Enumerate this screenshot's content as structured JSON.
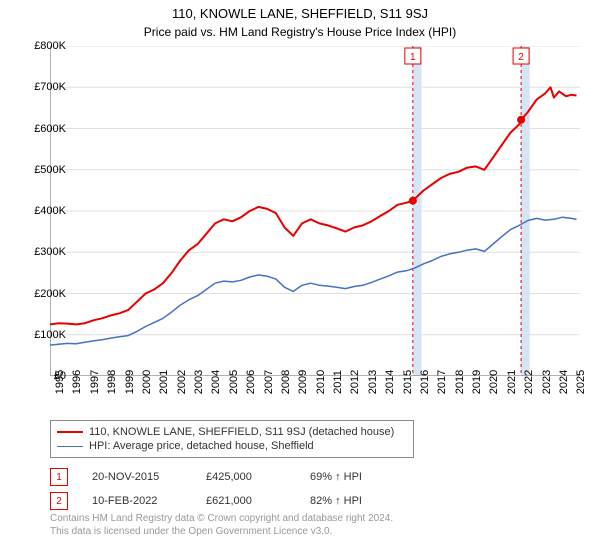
{
  "title": "110, KNOWLE LANE, SHEFFIELD, S11 9SJ",
  "subtitle": "Price paid vs. HM Land Registry's House Price Index (HPI)",
  "chart": {
    "type": "line",
    "background_color": "#ffffff",
    "grid_color": "#e0e0e0",
    "x_start_year": 1995,
    "x_end_year": 2025.5,
    "x_ticks": [
      1995,
      1996,
      1997,
      1998,
      1999,
      2000,
      2001,
      2002,
      2003,
      2004,
      2005,
      2006,
      2007,
      2008,
      2009,
      2010,
      2011,
      2012,
      2013,
      2014,
      2015,
      2016,
      2017,
      2018,
      2019,
      2020,
      2021,
      2022,
      2023,
      2024,
      2025
    ],
    "ylim": [
      0,
      800000
    ],
    "y_ticks": [
      0,
      100000,
      200000,
      300000,
      400000,
      500000,
      600000,
      700000,
      800000
    ],
    "y_tick_labels": [
      "£0",
      "£100K",
      "£200K",
      "£300K",
      "£400K",
      "£500K",
      "£600K",
      "£700K",
      "£800K"
    ],
    "axis_color": "#666666",
    "tick_fontsize": 11,
    "series": [
      {
        "name": "property",
        "label": "110, KNOWLE LANE, SHEFFIELD, S11 9SJ (detached house)",
        "color": "#e60000",
        "line_width": 2,
        "data": [
          [
            1995,
            125000
          ],
          [
            1995.5,
            128000
          ],
          [
            1996,
            127000
          ],
          [
            1996.5,
            125000
          ],
          [
            1997,
            128000
          ],
          [
            1997.5,
            135000
          ],
          [
            1998,
            140000
          ],
          [
            1998.5,
            147000
          ],
          [
            1999,
            152000
          ],
          [
            1999.5,
            160000
          ],
          [
            2000,
            180000
          ],
          [
            2000.5,
            200000
          ],
          [
            2001,
            210000
          ],
          [
            2001.5,
            225000
          ],
          [
            2002,
            250000
          ],
          [
            2002.5,
            280000
          ],
          [
            2003,
            305000
          ],
          [
            2003.5,
            320000
          ],
          [
            2004,
            345000
          ],
          [
            2004.5,
            370000
          ],
          [
            2005,
            380000
          ],
          [
            2005.5,
            375000
          ],
          [
            2006,
            385000
          ],
          [
            2006.5,
            400000
          ],
          [
            2007,
            410000
          ],
          [
            2007.5,
            405000
          ],
          [
            2008,
            395000
          ],
          [
            2008.5,
            360000
          ],
          [
            2009,
            340000
          ],
          [
            2009.5,
            370000
          ],
          [
            2010,
            380000
          ],
          [
            2010.5,
            370000
          ],
          [
            2011,
            365000
          ],
          [
            2011.5,
            358000
          ],
          [
            2012,
            350000
          ],
          [
            2012.5,
            360000
          ],
          [
            2013,
            365000
          ],
          [
            2013.5,
            375000
          ],
          [
            2014,
            388000
          ],
          [
            2014.5,
            400000
          ],
          [
            2015,
            415000
          ],
          [
            2015.5,
            420000
          ],
          [
            2015.88,
            425000
          ],
          [
            2016,
            430000
          ],
          [
            2016.5,
            450000
          ],
          [
            2017,
            465000
          ],
          [
            2017.5,
            480000
          ],
          [
            2018,
            490000
          ],
          [
            2018.5,
            495000
          ],
          [
            2019,
            505000
          ],
          [
            2019.5,
            508000
          ],
          [
            2020,
            500000
          ],
          [
            2020.5,
            530000
          ],
          [
            2021,
            560000
          ],
          [
            2021.5,
            590000
          ],
          [
            2022,
            610000
          ],
          [
            2022.11,
            621000
          ],
          [
            2022.5,
            640000
          ],
          [
            2023,
            670000
          ],
          [
            2023.5,
            685000
          ],
          [
            2023.8,
            700000
          ],
          [
            2024,
            675000
          ],
          [
            2024.3,
            690000
          ],
          [
            2024.7,
            678000
          ],
          [
            2025,
            682000
          ],
          [
            2025.3,
            680000
          ]
        ]
      },
      {
        "name": "hpi",
        "label": "HPI: Average price, detached house, Sheffield",
        "color": "#4472c4",
        "line_width": 1.5,
        "data": [
          [
            1995,
            75000
          ],
          [
            1995.5,
            77000
          ],
          [
            1996,
            79000
          ],
          [
            1996.5,
            78000
          ],
          [
            1997,
            82000
          ],
          [
            1997.5,
            85000
          ],
          [
            1998,
            88000
          ],
          [
            1998.5,
            92000
          ],
          [
            1999,
            95000
          ],
          [
            1999.5,
            98000
          ],
          [
            2000,
            108000
          ],
          [
            2000.5,
            120000
          ],
          [
            2001,
            130000
          ],
          [
            2001.5,
            140000
          ],
          [
            2002,
            155000
          ],
          [
            2002.5,
            172000
          ],
          [
            2003,
            185000
          ],
          [
            2003.5,
            195000
          ],
          [
            2004,
            210000
          ],
          [
            2004.5,
            225000
          ],
          [
            2005,
            230000
          ],
          [
            2005.5,
            228000
          ],
          [
            2006,
            232000
          ],
          [
            2006.5,
            240000
          ],
          [
            2007,
            245000
          ],
          [
            2007.5,
            242000
          ],
          [
            2008,
            235000
          ],
          [
            2008.5,
            215000
          ],
          [
            2009,
            205000
          ],
          [
            2009.5,
            220000
          ],
          [
            2010,
            225000
          ],
          [
            2010.5,
            220000
          ],
          [
            2011,
            218000
          ],
          [
            2011.5,
            215000
          ],
          [
            2012,
            212000
          ],
          [
            2012.5,
            217000
          ],
          [
            2013,
            220000
          ],
          [
            2013.5,
            227000
          ],
          [
            2014,
            235000
          ],
          [
            2014.5,
            243000
          ],
          [
            2015,
            252000
          ],
          [
            2015.5,
            255000
          ],
          [
            2016,
            262000
          ],
          [
            2016.5,
            272000
          ],
          [
            2017,
            280000
          ],
          [
            2017.5,
            290000
          ],
          [
            2018,
            296000
          ],
          [
            2018.5,
            300000
          ],
          [
            2019,
            305000
          ],
          [
            2019.5,
            308000
          ],
          [
            2020,
            302000
          ],
          [
            2020.5,
            320000
          ],
          [
            2021,
            338000
          ],
          [
            2021.5,
            355000
          ],
          [
            2022,
            365000
          ],
          [
            2022.5,
            377000
          ],
          [
            2023,
            382000
          ],
          [
            2023.5,
            378000
          ],
          [
            2024,
            380000
          ],
          [
            2024.5,
            385000
          ],
          [
            2025,
            382000
          ],
          [
            2025.3,
            380000
          ]
        ]
      }
    ],
    "sale_markers": [
      {
        "n": 1,
        "year": 2015.88,
        "value": 425000,
        "color": "#e60000"
      },
      {
        "n": 2,
        "year": 2022.11,
        "value": 621000,
        "color": "#e60000"
      }
    ],
    "shade_bands": [
      {
        "from": 2015.88,
        "to": 2016.38,
        "color": "#d6e4f5"
      },
      {
        "from": 2022.11,
        "to": 2022.61,
        "color": "#d6e4f5"
      }
    ]
  },
  "legend": {
    "rows": [
      {
        "color": "#e60000",
        "width": 2,
        "label": "110, KNOWLE LANE, SHEFFIELD, S11 9SJ (detached house)"
      },
      {
        "color": "#4472c4",
        "width": 1.5,
        "label": "HPI: Average price, detached house, Sheffield"
      }
    ]
  },
  "sales": {
    "rows": [
      {
        "n": "1",
        "marker_color": "#e60000",
        "date": "20-NOV-2015",
        "price": "£425,000",
        "vs_hpi": "69% ↑ HPI"
      },
      {
        "n": "2",
        "marker_color": "#e60000",
        "date": "10-FEB-2022",
        "price": "£621,000",
        "vs_hpi": "82% ↑ HPI"
      }
    ]
  },
  "footer": {
    "line1": "Contains HM Land Registry data © Crown copyright and database right 2024.",
    "line2": "This data is licensed under the Open Government Licence v3.0."
  }
}
